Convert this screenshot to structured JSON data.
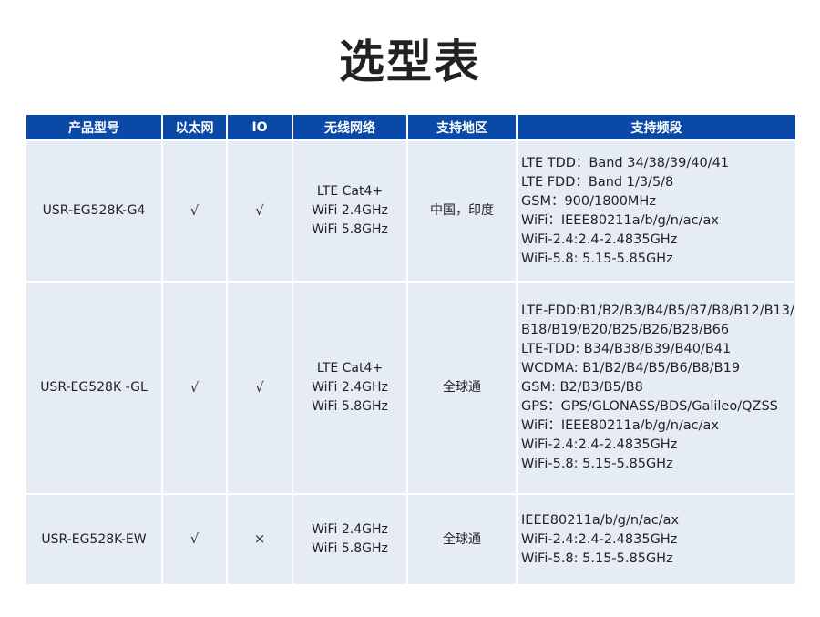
{
  "title": "选型表",
  "headers": [
    "产品型号",
    "以太网",
    "IO",
    "无线网络",
    "支持地区",
    "支持频段"
  ],
  "rows": [
    {
      "model": "USR-EG528K-G4",
      "ethernet": "√",
      "io": "√",
      "wireless": [
        "LTE Cat4+",
        "WiFi 2.4GHz",
        "WiFi 5.8GHz"
      ],
      "region": "中国，印度",
      "bands": [
        "LTE TDD：Band 34/38/39/40/41",
        "LTE FDD：Band 1/3/5/8",
        "GSM：900/1800MHz",
        "WiFi：IEEE80211a/b/g/n/ac/ax",
        "WiFi-2.4:2.4-2.4835GHz",
        "WiFi-5.8: 5.15-5.85GHz"
      ]
    },
    {
      "model": "USR-EG528K -GL",
      "ethernet": "√",
      "io": "√",
      "wireless": [
        "LTE Cat4+",
        "WiFi 2.4GHz",
        "WiFi 5.8GHz"
      ],
      "region": "全球通",
      "bands": [
        "LTE-FDD:B1/B2/B3/B4/B5/B7/B8/B12/B13/",
        "B18/B19/B20/B25/B26/B28/B66",
        "LTE-TDD: B34/B38/B39/B40/B41",
        "WCDMA: B1/B2/B4/B5/B6/B8/B19",
        "GSM: B2/B3/B5/B8",
        "GPS：GPS/GLONASS/BDS/Galileo/QZSS",
        "WiFi：IEEE80211a/b/g/n/ac/ax",
        "WiFi-2.4:2.4-2.4835GHz",
        "WiFi-5.8: 5.15-5.85GHz"
      ]
    },
    {
      "model": "USR-EG528K-EW",
      "ethernet": "√",
      "io": "×",
      "wireless": [
        "WiFi 2.4GHz",
        "WiFi 5.8GHz"
      ],
      "region": "全球通",
      "bands": [
        "IEEE80211a/b/g/n/ac/ax",
        "WiFi-2.4:2.4-2.4835GHz",
        "WiFi-5.8: 5.15-5.85GHz"
      ]
    }
  ],
  "colors": {
    "header": "#0a4aa6",
    "cell": "#e6ecf5"
  }
}
